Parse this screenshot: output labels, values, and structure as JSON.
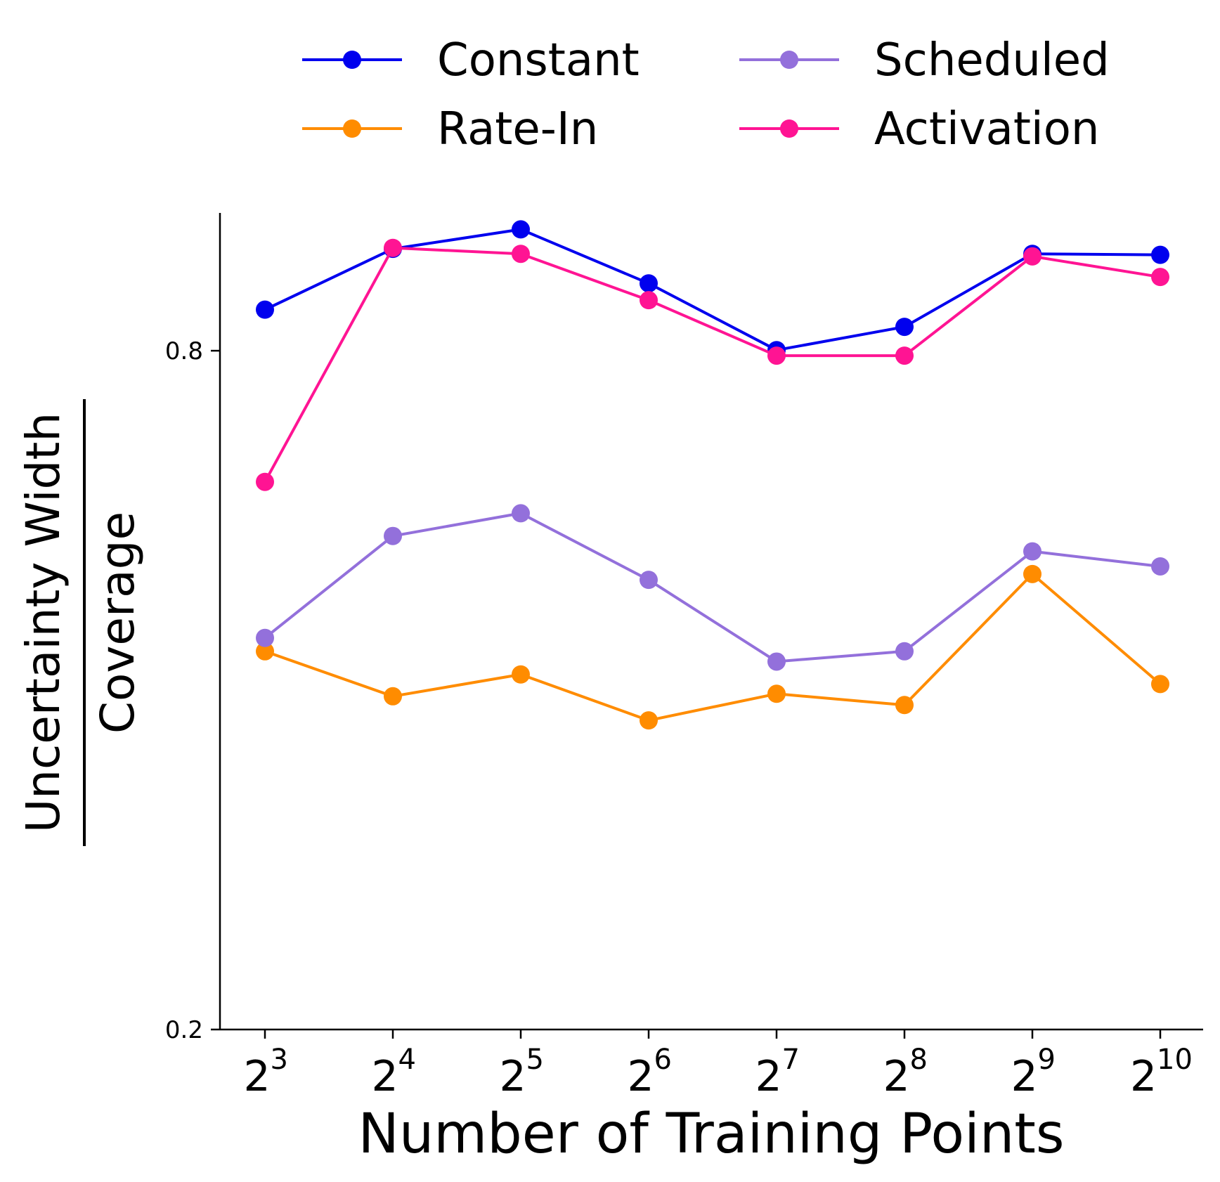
{
  "chart_data": {
    "type": "line",
    "title": "",
    "xlabel": "Number of Training Points",
    "ylabel": {
      "numerator": "Uncertainty Width",
      "denominator": "Coverage"
    },
    "yscale": "log",
    "ylim": [
      0.2,
      1.06
    ],
    "yticks": [
      {
        "value": 0.2,
        "label": "0.2"
      },
      {
        "value": 0.8,
        "label": "0.8"
      }
    ],
    "x": [
      3,
      4,
      5,
      6,
      7,
      8,
      9,
      10
    ],
    "xtick_labels": [
      {
        "base": "2",
        "exp": "3"
      },
      {
        "base": "2",
        "exp": "4"
      },
      {
        "base": "2",
        "exp": "5"
      },
      {
        "base": "2",
        "exp": "6"
      },
      {
        "base": "2",
        "exp": "7"
      },
      {
        "base": "2",
        "exp": "8"
      },
      {
        "base": "2",
        "exp": "9"
      },
      {
        "base": "2",
        "exp": "10"
      }
    ],
    "legend_position": "top",
    "series": [
      {
        "name": "Constant",
        "color": "#0000ee",
        "values": [
          0.87,
          0.985,
          1.025,
          0.918,
          0.801,
          0.84,
          0.975,
          0.973
        ]
      },
      {
        "name": "Rate-In",
        "color": "#ff8c00",
        "values": [
          0.433,
          0.395,
          0.413,
          0.376,
          0.397,
          0.388,
          0.507,
          0.405
        ]
      },
      {
        "name": "Scheduled",
        "color": "#9370db",
        "values": [
          0.445,
          0.548,
          0.574,
          0.501,
          0.424,
          0.433,
          0.531,
          0.515
        ]
      },
      {
        "name": "Activation",
        "color": "#ff1493",
        "values": [
          0.612,
          0.987,
          0.975,
          0.887,
          0.792,
          0.792,
          0.97,
          0.93
        ]
      }
    ]
  }
}
